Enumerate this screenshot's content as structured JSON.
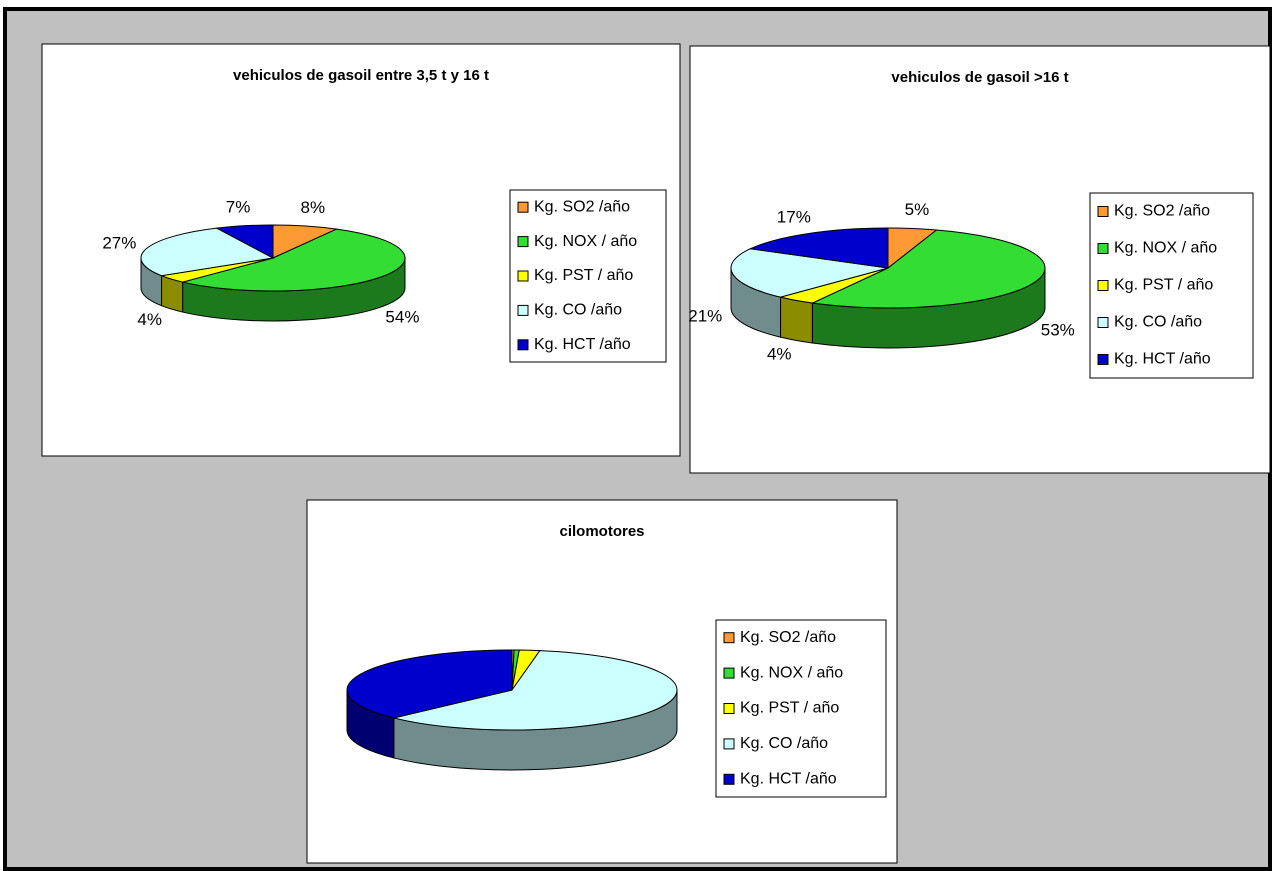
{
  "chart_data": [
    {
      "type": "pie",
      "title": "vehiculos de  gasoil entre 3,5 t y 16 t",
      "categories": [
        "Kg. SO2 /año",
        "Kg. NOX / año",
        "Kg. PST / año",
        "Kg. CO /año",
        "Kg. HCT /año"
      ],
      "values": [
        8,
        54,
        4,
        27,
        7
      ],
      "value_labels": [
        "8%",
        "54%",
        "4%",
        "27%",
        "7%"
      ],
      "colors": [
        "#ff9933",
        "#33dd33",
        "#ffff00",
        "#ccffff",
        "#0000cc"
      ],
      "legend": "right"
    },
    {
      "type": "pie",
      "title": "vehiculos de gasoil >16 t",
      "categories": [
        "Kg. SO2 /año",
        "Kg. NOX / año",
        "Kg. PST / año",
        "Kg. CO /año",
        "Kg. HCT /año"
      ],
      "values": [
        5,
        53,
        4,
        21,
        17
      ],
      "value_labels": [
        "5%",
        "53%",
        "4%",
        "21%",
        "17%"
      ],
      "colors": [
        "#ff9933",
        "#33dd33",
        "#ffff00",
        "#ccffff",
        "#0000cc"
      ],
      "legend": "right"
    },
    {
      "type": "pie",
      "title": "cilomotores",
      "categories": [
        "Kg. SO2 /año",
        "Kg. NOX / año",
        "Kg. PST / año",
        "Kg. CO /año",
        "Kg. HCT /año"
      ],
      "values": [
        0.2,
        0.5,
        2,
        60,
        37.3
      ],
      "colors": [
        "#ff9933",
        "#33dd33",
        "#ffff00",
        "#ccffff",
        "#0000cc"
      ],
      "legend": "right"
    }
  ]
}
